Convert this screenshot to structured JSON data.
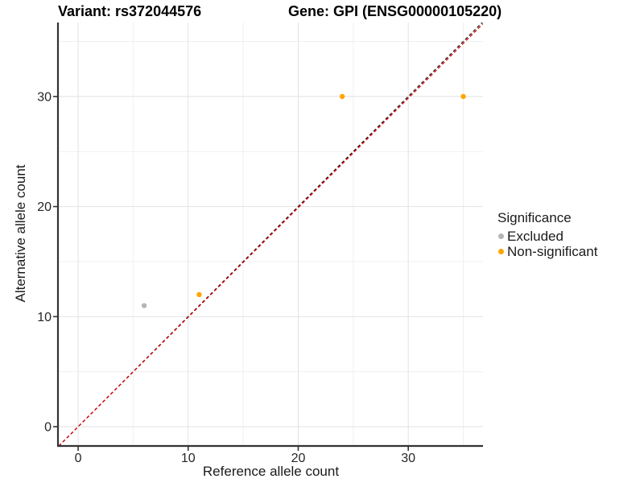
{
  "chart_data": {
    "type": "scatter",
    "titles": {
      "left": "Variant: rs372044576",
      "right": "Gene: GPI (ENSG00000105220)"
    },
    "xlabel": "Reference allele count",
    "ylabel": "Alternative allele count",
    "xlim": [
      -1.76,
      36.79
    ],
    "ylim": [
      -1.68,
      36.72
    ],
    "xticks": [
      0,
      10,
      20,
      30
    ],
    "yticks": [
      0,
      10,
      20,
      30
    ],
    "minor_xticks": [
      5,
      15,
      25,
      35
    ],
    "minor_yticks": [
      5,
      15,
      25,
      35
    ],
    "grid": "major and minor gridlines on white background",
    "legend": {
      "title": "Significance",
      "position": "right",
      "items": [
        {
          "label": "Excluded",
          "color": "#B5B5B5"
        },
        {
          "label": "Non-significant",
          "color": "#FFA500"
        }
      ]
    },
    "series": [
      {
        "name": "Excluded",
        "color": "#B5B5B5",
        "points": [
          {
            "x": 6,
            "y": 11
          }
        ]
      },
      {
        "name": "Non-significant",
        "color": "#FFA500",
        "points": [
          {
            "x": 11,
            "y": 12
          },
          {
            "x": 24,
            "y": 30
          },
          {
            "x": 35,
            "y": 30
          }
        ]
      }
    ],
    "reference_lines": [
      {
        "name": "identity",
        "slope": 1,
        "intercept": 0,
        "color": "#1A1A1A",
        "style": "dashed"
      },
      {
        "name": "fitted-ratio",
        "slope": 0.995,
        "intercept": 0,
        "color": "#E60000",
        "style": "dashed"
      }
    ],
    "colors": {
      "grid_major": "#E2E2E2",
      "grid_minor": "#F0F0F0",
      "axis": "#333333",
      "tick_text": "#262626"
    }
  }
}
